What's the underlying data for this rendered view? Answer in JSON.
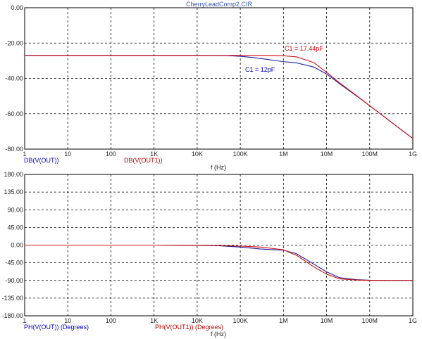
{
  "window": {
    "title": "CherryLeadComp2.CIR"
  },
  "colors": {
    "series_out": "#1a1aa0",
    "series_out1": "#d01010",
    "grid": "#000000",
    "axis_text": "#222222",
    "title": "#3355aa"
  },
  "chart_data": [
    {
      "type": "line",
      "xscale": "log",
      "xlim": [
        1,
        1000000000
      ],
      "ylim": [
        -80,
        0
      ],
      "grid": true,
      "x_tick_labels": [
        "1",
        "10",
        "100",
        "1K",
        "10K",
        "100K",
        "1M",
        "10M",
        "100M",
        "1G"
      ],
      "y_tick_labels": [
        "0.00",
        "-20.00",
        "-40.00",
        "-60.00",
        "-80.00"
      ],
      "xlabel": "f (Hz)",
      "legend_entries": [
        "DB(V(OUT))",
        "DB(V(OUT1))"
      ],
      "annotations": [
        "C1 = 17.44pF",
        "C1 = 12pF"
      ],
      "series": [
        {
          "name": "DB(V(OUT))",
          "x": [
            1,
            1000,
            10000,
            50000,
            100000,
            200000,
            500000,
            1000000,
            2000000,
            5000000,
            10000000,
            20000000,
            50000000,
            100000000,
            200000000,
            500000000,
            1000000000
          ],
          "y": [
            -27,
            -27,
            -27,
            -27.1,
            -27.5,
            -28.2,
            -29.5,
            -30.5,
            -31.2,
            -33.5,
            -37.5,
            -43,
            -50,
            -55.5,
            -61,
            -68.5,
            -74
          ]
        },
        {
          "name": "DB(V(OUT1))",
          "x": [
            1,
            1000,
            10000,
            50000,
            100000,
            200000,
            500000,
            1000000,
            2000000,
            5000000,
            10000000,
            20000000,
            50000000,
            100000000,
            200000000,
            500000000,
            1000000000
          ],
          "y": [
            -27,
            -27,
            -27,
            -27,
            -27,
            -27,
            -27,
            -27.2,
            -27.8,
            -31,
            -36.5,
            -42.5,
            -49.8,
            -55.5,
            -61,
            -68.5,
            -74
          ]
        }
      ]
    },
    {
      "type": "line",
      "xscale": "log",
      "xlim": [
        1,
        1000000000
      ],
      "ylim": [
        -180,
        180
      ],
      "grid": true,
      "x_tick_labels": [
        "1",
        "10",
        "100",
        "1K",
        "10K",
        "100K",
        "1M",
        "10M",
        "100M",
        "1G"
      ],
      "y_tick_labels": [
        "180.00",
        "135.00",
        "90.00",
        "45.00",
        "0.00",
        "-45.00",
        "-90.00",
        "-135.00",
        "-180.00"
      ],
      "xlabel": "f (Hz)",
      "legend_entries": [
        "PH(V(OUT)) (Degrees)",
        "PH(V(OUT1)) (Degrees)"
      ],
      "series": [
        {
          "name": "PH(V(OUT)) (Degrees)",
          "x": [
            1,
            1000,
            10000,
            30000,
            100000,
            300000,
            1000000,
            2000000,
            5000000,
            10000000,
            20000000,
            50000000,
            100000000,
            300000000,
            1000000000
          ],
          "y": [
            0,
            0,
            -0.5,
            -1.5,
            -5,
            -10,
            -13,
            -22,
            -48,
            -68,
            -83,
            -88,
            -89.5,
            -90,
            -90
          ]
        },
        {
          "name": "PH(V(OUT1)) (Degrees)",
          "x": [
            1,
            1000,
            10000,
            30000,
            100000,
            300000,
            1000000,
            2000000,
            5000000,
            10000000,
            20000000,
            50000000,
            100000000,
            300000000,
            1000000000
          ],
          "y": [
            0,
            0,
            -0.2,
            -0.8,
            -2.5,
            -5,
            -12,
            -26,
            -55,
            -74,
            -86,
            -89,
            -89.8,
            -90,
            -90
          ]
        }
      ]
    }
  ]
}
